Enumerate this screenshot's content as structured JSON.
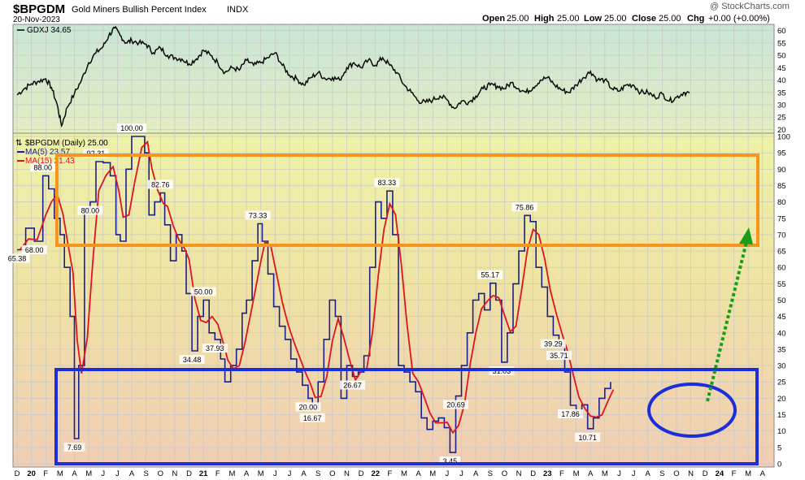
{
  "header": {
    "symbol": "$BPGDM",
    "name": "Gold Miners Bullish Percent Index",
    "exchange": "INDX",
    "date": "20-Nov-2023",
    "watermark": "@ StockCharts.com",
    "open_label": "Open",
    "open": "25.00",
    "high_label": "High",
    "high": "25.00",
    "low_label": "Low",
    "low": "25.00",
    "close_label": "Close",
    "close": "25.00",
    "chg_label": "Chg",
    "chg": "+0.00 (+0.00%)"
  },
  "colors": {
    "price_line": "#0a0a0a",
    "bpi_line": "#1b1f8a",
    "ma5": "#1b1f8a",
    "ma15": "#e0141e",
    "orange_box": "#f7941d",
    "blue_box": "#1b2ed8",
    "arrow": "#1a9e1a",
    "grid": "#c7c7c7"
  },
  "chart_data": [
    {
      "type": "line",
      "legend": "GDXJ 34.65",
      "y_ticks": [
        20,
        25,
        30,
        35,
        40,
        45,
        50,
        55,
        60
      ],
      "ylim": [
        18.5,
        62.5
      ],
      "x_unit": "months since Dec 2019",
      "series": [
        {
          "name": "GDXJ",
          "points": [
            [
              0,
              34
            ],
            [
              0.5,
              36.5
            ],
            [
              1,
              38.5
            ],
            [
              1.5,
              39.5
            ],
            [
              2,
              40.5
            ],
            [
              2.4,
              37
            ],
            [
              2.8,
              30
            ],
            [
              3.1,
              21.5
            ],
            [
              3.5,
              29
            ],
            [
              4,
              34.5
            ],
            [
              4.5,
              40
            ],
            [
              5,
              47
            ],
            [
              5.5,
              51
            ],
            [
              6,
              53.5
            ],
            [
              6.4,
              58
            ],
            [
              6.8,
              61
            ],
            [
              7.2,
              58
            ],
            [
              7.6,
              55
            ],
            [
              8,
              56
            ],
            [
              8.5,
              55
            ],
            [
              9,
              54.5
            ],
            [
              9.5,
              51
            ],
            [
              10,
              53
            ],
            [
              10.5,
              50
            ],
            [
              11,
              49
            ],
            [
              11.5,
              48.5
            ],
            [
              12,
              46.5
            ],
            [
              12.5,
              48.5
            ],
            [
              13,
              52
            ],
            [
              13.5,
              50
            ],
            [
              14,
              47
            ],
            [
              14.5,
              43
            ],
            [
              15,
              45
            ],
            [
              15.5,
              44
            ],
            [
              16,
              48
            ],
            [
              16.5,
              46
            ],
            [
              17,
              47
            ],
            [
              17.5,
              49
            ],
            [
              18,
              51
            ],
            [
              18.5,
              46
            ],
            [
              19,
              42
            ],
            [
              19.5,
              40.5
            ],
            [
              20,
              38
            ],
            [
              20.5,
              41
            ],
            [
              21,
              43
            ],
            [
              21.5,
              40.5
            ],
            [
              22,
              41
            ],
            [
              22.5,
              40
            ],
            [
              23,
              45
            ],
            [
              23.5,
              47
            ],
            [
              24,
              45
            ],
            [
              24.5,
              48
            ],
            [
              25,
              46
            ],
            [
              25.5,
              49
            ],
            [
              26,
              46
            ],
            [
              26.5,
              43
            ],
            [
              27,
              38
            ],
            [
              27.5,
              35
            ],
            [
              28,
              31.5
            ],
            [
              28.5,
              31
            ],
            [
              29,
              32
            ],
            [
              29.5,
              33.5
            ],
            [
              30,
              32
            ],
            [
              30.5,
              28.5
            ],
            [
              31,
              31.5
            ],
            [
              31.5,
              31
            ],
            [
              32,
              33.5
            ],
            [
              32.5,
              36.5
            ],
            [
              33,
              38
            ],
            [
              33.5,
              37.5
            ],
            [
              34,
              36.5
            ],
            [
              34.5,
              39
            ],
            [
              35,
              36.5
            ],
            [
              35.5,
              35
            ],
            [
              36,
              37
            ],
            [
              36.5,
              40
            ],
            [
              37,
              41
            ],
            [
              37.5,
              38
            ],
            [
              38,
              36
            ],
            [
              38.5,
              35
            ],
            [
              39,
              38
            ],
            [
              39.5,
              41
            ],
            [
              40,
              43.5
            ],
            [
              40.5,
              40
            ],
            [
              41,
              40
            ],
            [
              41.5,
              36.5
            ],
            [
              42,
              35.5
            ],
            [
              42.5,
              38
            ],
            [
              43,
              38
            ],
            [
              43.5,
              35
            ],
            [
              44,
              35
            ],
            [
              44.5,
              33
            ],
            [
              45,
              34.5
            ],
            [
              45.5,
              31.5
            ],
            [
              46,
              33
            ],
            [
              46.5,
              35
            ],
            [
              46.9,
              34.65
            ]
          ]
        }
      ]
    },
    {
      "type": "line",
      "title": "$BPGDM (Daily) 25.00",
      "y_ticks": [
        0,
        5,
        10,
        15,
        20,
        25,
        30,
        35,
        40,
        45,
        50,
        55,
        60,
        65,
        70,
        75,
        80,
        85,
        90,
        95,
        100
      ],
      "ylim": [
        -1,
        101
      ],
      "x_ticks": [
        "D",
        "20",
        "F",
        "M",
        "A",
        "M",
        "J",
        "J",
        "A",
        "S",
        "O",
        "N",
        "D",
        "21",
        "F",
        "M",
        "A",
        "M",
        "J",
        "J",
        "A",
        "S",
        "O",
        "N",
        "D",
        "22",
        "F",
        "M",
        "A",
        "M",
        "J",
        "J",
        "A",
        "S",
        "O",
        "N",
        "D",
        "23",
        "F",
        "M",
        "A",
        "M",
        "J",
        "J",
        "A",
        "S",
        "O",
        "N",
        "D",
        "24",
        "F",
        "M",
        "A"
      ],
      "series": [
        {
          "name": "$BPGDM",
          "points": [
            [
              0,
              65.38
            ],
            [
              0.6,
              72
            ],
            [
              1.2,
              68
            ],
            [
              1.8,
              88
            ],
            [
              2.2,
              84
            ],
            [
              2.6,
              75
            ],
            [
              3,
              70
            ],
            [
              3.3,
              60
            ],
            [
              3.7,
              45
            ],
            [
              4,
              7.69
            ],
            [
              4.3,
              30
            ],
            [
              4.7,
              78
            ],
            [
              5.1,
              80
            ],
            [
              5.5,
              92.31
            ],
            [
              6,
              92
            ],
            [
              6.5,
              88
            ],
            [
              6.9,
              70
            ],
            [
              7.2,
              68
            ],
            [
              7.6,
              90
            ],
            [
              8,
              100
            ],
            [
              8.5,
              100
            ],
            [
              8.9,
              95
            ],
            [
              9.2,
              76
            ],
            [
              9.6,
              80
            ],
            [
              10,
              82.76
            ],
            [
              10.3,
              73
            ],
            [
              10.7,
              62
            ],
            [
              11.1,
              70
            ],
            [
              11.5,
              65
            ],
            [
              11.8,
              52
            ],
            [
              12.2,
              34.48
            ],
            [
              12.6,
              45
            ],
            [
              13,
              50
            ],
            [
              13.4,
              40
            ],
            [
              13.8,
              37.93
            ],
            [
              14.2,
              32
            ],
            [
              14.5,
              25
            ],
            [
              14.9,
              30
            ],
            [
              15.3,
              35
            ],
            [
              15.7,
              46
            ],
            [
              16,
              50
            ],
            [
              16.4,
              62
            ],
            [
              16.8,
              73.33
            ],
            [
              17.1,
              68
            ],
            [
              17.5,
              58
            ],
            [
              17.9,
              48
            ],
            [
              18.3,
              42
            ],
            [
              18.7,
              38
            ],
            [
              19.1,
              32
            ],
            [
              19.5,
              28
            ],
            [
              19.9,
              24
            ],
            [
              20.3,
              20
            ],
            [
              20.6,
              16.67
            ],
            [
              21,
              25
            ],
            [
              21.4,
              38
            ],
            [
              21.8,
              50
            ],
            [
              22.2,
              45
            ],
            [
              22.6,
              20
            ],
            [
              23,
              30
            ],
            [
              23.4,
              26.67
            ],
            [
              23.8,
              28
            ],
            [
              24.2,
              33
            ],
            [
              24.6,
              60
            ],
            [
              25,
              80
            ],
            [
              25.4,
              75
            ],
            [
              25.8,
              83.33
            ],
            [
              26.2,
              70
            ],
            [
              26.6,
              30
            ],
            [
              27,
              28
            ],
            [
              27.4,
              25
            ],
            [
              27.8,
              22
            ],
            [
              28.2,
              14
            ],
            [
              28.6,
              10.5
            ],
            [
              29,
              13
            ],
            [
              29.4,
              14
            ],
            [
              29.8,
              11
            ],
            [
              30.2,
              3.45
            ],
            [
              30.6,
              20.69
            ],
            [
              31,
              30
            ],
            [
              31.4,
              40
            ],
            [
              31.8,
              50
            ],
            [
              32.2,
              52
            ],
            [
              32.6,
              47
            ],
            [
              33,
              55.17
            ],
            [
              33.4,
              50
            ],
            [
              33.8,
              31.03
            ],
            [
              34.2,
              40
            ],
            [
              34.6,
              55
            ],
            [
              35,
              65
            ],
            [
              35.4,
              75.86
            ],
            [
              35.8,
              74
            ],
            [
              36.2,
              60
            ],
            [
              36.6,
              54
            ],
            [
              37,
              45
            ],
            [
              37.4,
              39.29
            ],
            [
              37.8,
              35.71
            ],
            [
              38.2,
              28
            ],
            [
              38.6,
              17.86
            ],
            [
              39,
              15
            ],
            [
              39.4,
              18
            ],
            [
              39.8,
              10.71
            ],
            [
              40.2,
              14
            ],
            [
              40.6,
              20
            ],
            [
              41,
              23
            ],
            [
              41.4,
              25
            ]
          ]
        },
        {
          "name": "MA(5) 23.57"
        },
        {
          "name": "MA(15) 21.43"
        }
      ],
      "annotations": [
        "65.38",
        "88.00",
        "92.31",
        "68.00",
        "100.00",
        "82.76",
        "34.48",
        "37.93",
        "73.33",
        "50.00",
        "16.67",
        "20.00",
        "26.67",
        "80.00",
        "83.33",
        "3.45",
        "20.69",
        "55.17",
        "31.03",
        "75.86",
        "39.29",
        "35.71",
        "17.86",
        "10.71",
        "7.69"
      ]
    }
  ]
}
